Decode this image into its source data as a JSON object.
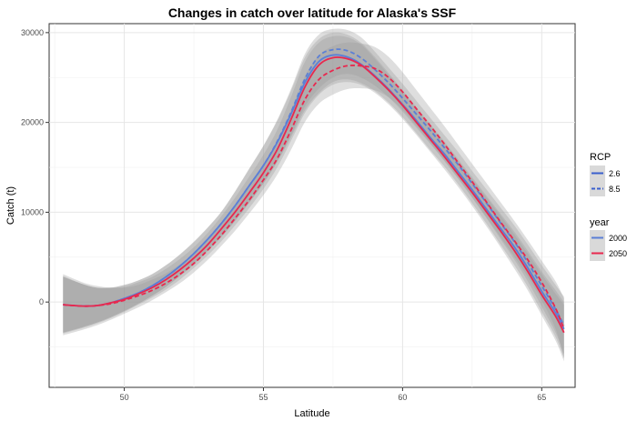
{
  "chart_data": {
    "type": "line",
    "title": "Changes in catch over latitude for Alaska's SSF",
    "xlabel": "Latitude",
    "ylabel": "Catch (t)",
    "xlim": [
      47.3,
      66.2
    ],
    "ylim": [
      -9500,
      31000
    ],
    "x_ticks": [
      50,
      55,
      60,
      65
    ],
    "x_tick_labels": [
      "50",
      "55",
      "60",
      "65"
    ],
    "y_ticks": [
      0,
      10000,
      20000,
      30000
    ],
    "y_tick_labels": [
      "0",
      "10000",
      "20000",
      "30000"
    ],
    "grid": true,
    "x": [
      47.8,
      48.5,
      49.0,
      49.5,
      50.0,
      50.5,
      51.0,
      51.5,
      52.0,
      52.5,
      53.0,
      53.5,
      54.0,
      54.5,
      55.0,
      55.5,
      56.0,
      56.5,
      57.0,
      57.5,
      58.0,
      58.5,
      59.0,
      59.5,
      60.0,
      60.5,
      61.0,
      61.5,
      62.0,
      62.5,
      63.0,
      63.5,
      64.0,
      64.5,
      65.0,
      65.5,
      65.8
    ],
    "series": [
      {
        "rcp": "2.6",
        "year": "2000",
        "color": "#5b7fd6",
        "dash": "solid",
        "values": [
          -300,
          -450,
          -400,
          -100,
          400,
          1000,
          1800,
          2800,
          4000,
          5400,
          7000,
          8800,
          10800,
          13000,
          15200,
          17800,
          21000,
          24500,
          26800,
          27500,
          27300,
          26500,
          25200,
          23700,
          22000,
          20200,
          18300,
          16500,
          14500,
          12500,
          10400,
          8300,
          6200,
          3800,
          1200,
          -1200,
          -3000
        ],
        "lower": [
          -3400,
          -2800,
          -2300,
          -1700,
          -1000,
          -200,
          700,
          1700,
          2900,
          4200,
          5700,
          7300,
          9100,
          11100,
          13200,
          15600,
          18400,
          21400,
          23300,
          24500,
          24800,
          24400,
          23500,
          22200,
          20600,
          18800,
          16900,
          15100,
          13100,
          11000,
          8800,
          6500,
          4200,
          1700,
          -1100,
          -3900,
          -6200
        ],
        "upper": [
          2800,
          2000,
          1600,
          1600,
          1900,
          2400,
          3100,
          4100,
          5300,
          6700,
          8300,
          10100,
          12400,
          14900,
          17400,
          20200,
          23600,
          27300,
          29300,
          30000,
          29800,
          28900,
          27300,
          25500,
          23600,
          21700,
          19800,
          17900,
          15900,
          13900,
          11900,
          9900,
          7900,
          5700,
          3400,
          1300,
          0
        ]
      },
      {
        "rcp": "8.5",
        "year": "2000",
        "color": "#5b7fd6",
        "dash": "dashed",
        "values": [
          -300,
          -450,
          -400,
          -100,
          400,
          1000,
          1800,
          2800,
          4000,
          5400,
          7000,
          8800,
          10800,
          13000,
          15200,
          17900,
          21200,
          24900,
          27400,
          28100,
          28000,
          27200,
          25900,
          24400,
          22700,
          20900,
          19100,
          17200,
          15300,
          13200,
          11100,
          8900,
          6800,
          4400,
          1800,
          -800,
          -2600
        ],
        "lower": [
          -3400,
          -2800,
          -2300,
          -1700,
          -1000,
          -200,
          700,
          1700,
          2900,
          4200,
          5700,
          7300,
          9100,
          11100,
          13200,
          15700,
          18600,
          21800,
          23800,
          25000,
          25400,
          25000,
          24100,
          22800,
          21200,
          19400,
          17600,
          15700,
          13700,
          11600,
          9400,
          7100,
          4800,
          2300,
          -500,
          -3400,
          -5800
        ],
        "upper": [
          2800,
          2000,
          1600,
          1600,
          1900,
          2400,
          3100,
          4100,
          5300,
          6700,
          8300,
          10100,
          12400,
          14900,
          17400,
          20300,
          23800,
          27700,
          29800,
          30400,
          30300,
          29500,
          27900,
          26100,
          24300,
          22400,
          20500,
          18600,
          16700,
          14600,
          12600,
          10600,
          8600,
          6400,
          4100,
          1900,
          600
        ]
      },
      {
        "rcp": "2.6",
        "year": "2050",
        "color": "#e8284e",
        "dash": "solid",
        "values": [
          -300,
          -450,
          -400,
          -100,
          300,
          900,
          1600,
          2500,
          3600,
          4900,
          6400,
          8200,
          10100,
          12200,
          14400,
          17000,
          20400,
          24000,
          26400,
          27200,
          27100,
          26400,
          25100,
          23600,
          21900,
          20000,
          18100,
          16200,
          14200,
          12200,
          10100,
          8000,
          5800,
          3400,
          800,
          -1600,
          -3400
        ],
        "lower": [
          -3500,
          -2900,
          -2400,
          -1800,
          -1100,
          -300,
          500,
          1400,
          2500,
          3800,
          5200,
          6800,
          8600,
          10500,
          12600,
          15000,
          18000,
          21100,
          23100,
          24200,
          24500,
          24200,
          23300,
          22000,
          20400,
          18600,
          16700,
          14800,
          12800,
          10700,
          8500,
          6200,
          3800,
          1300,
          -1500,
          -4300,
          -6600
        ],
        "upper": [
          2900,
          2000,
          1600,
          1600,
          1700,
          2200,
          2800,
          3700,
          4800,
          6100,
          7700,
          9600,
          11700,
          14000,
          16400,
          19200,
          22900,
          26800,
          28900,
          29600,
          29500,
          28700,
          27100,
          25300,
          23400,
          21500,
          19600,
          17700,
          15700,
          13700,
          11700,
          9700,
          7600,
          5400,
          3100,
          900,
          -300
        ]
      },
      {
        "rcp": "8.5",
        "year": "2050",
        "color": "#e8284e",
        "dash": "dashed",
        "values": [
          -300,
          -450,
          -400,
          -200,
          200,
          700,
          1300,
          2100,
          3100,
          4300,
          5800,
          7500,
          9400,
          11400,
          13600,
          16000,
          19200,
          22600,
          24800,
          25800,
          26300,
          26300,
          26000,
          25000,
          23400,
          21500,
          19600,
          17600,
          15500,
          13400,
          11200,
          9000,
          6900,
          4700,
          2200,
          -700,
          -3000
        ],
        "lower": [
          -3700,
          -3100,
          -2600,
          -2000,
          -1300,
          -600,
          200,
          1100,
          2100,
          3300,
          4700,
          6300,
          8000,
          9900,
          11900,
          14200,
          17000,
          20100,
          22100,
          23100,
          23700,
          23800,
          23600,
          22800,
          21400,
          19600,
          17700,
          15800,
          13800,
          11700,
          9500,
          7300,
          5100,
          2800,
          200,
          -3000,
          -6300
        ],
        "upper": [
          3100,
          2200,
          1800,
          1600,
          1600,
          1900,
          2500,
          3200,
          4200,
          5400,
          6900,
          8700,
          10800,
          13000,
          15300,
          17900,
          21400,
          25200,
          27500,
          28500,
          28900,
          28800,
          28400,
          27300,
          25600,
          23600,
          21600,
          19600,
          17500,
          15400,
          13300,
          11200,
          9100,
          6900,
          4600,
          2300,
          400
        ]
      }
    ],
    "legend": {
      "position": "right",
      "groups": [
        {
          "title": "RCP",
          "entries": [
            {
              "label": "2.6",
              "style": "solid"
            },
            {
              "label": "8.5",
              "style": "dashed"
            }
          ]
        },
        {
          "title": "year",
          "entries": [
            {
              "label": "2000",
              "color": "#5b7fd6"
            },
            {
              "label": "2050",
              "color": "#e8284e"
            }
          ]
        }
      ]
    }
  }
}
